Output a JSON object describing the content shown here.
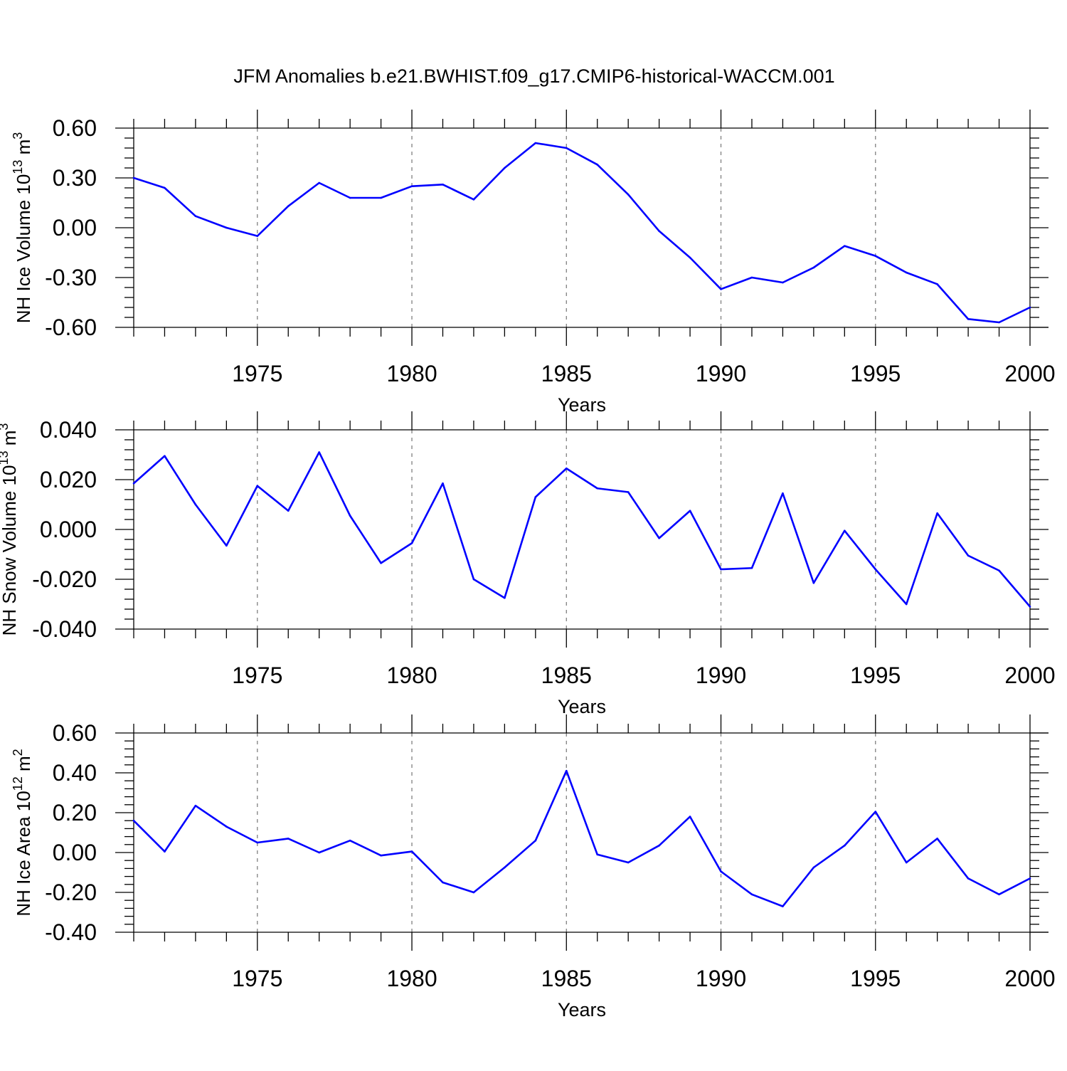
{
  "title": "JFM Anomalies b.e21.BWHIST.f09_g17.CMIP6-historical-WACCM.001",
  "style": {
    "line_color": "#0000ff",
    "axis_color": "#000000",
    "grid_color": "#808080"
  },
  "chart_data": [
    {
      "type": "line",
      "ylabel": {
        "prefix": "NH Ice Volume 10",
        "exponent": "13",
        "unit": " m",
        "unit_exponent": "3"
      },
      "xlabel": "Years",
      "xlim": [
        1971,
        2000
      ],
      "ylim": [
        -0.6,
        0.6
      ],
      "yticks": [
        -0.6,
        -0.3,
        0.0,
        0.3,
        0.6
      ],
      "ytick_labels": [
        "-0.60",
        "-0.30",
        "0.00",
        "0.30",
        "0.60"
      ],
      "xticks": [
        1975,
        1980,
        1985,
        1990,
        1995,
        2000
      ],
      "xtick_labels": [
        "1975",
        "1980",
        "1985",
        "1990",
        "1995",
        "2000"
      ],
      "grid": "vertical dashed at major x ticks",
      "series": [
        {
          "x": [
            1971,
            1972,
            1973,
            1974,
            1975,
            1976,
            1977,
            1978,
            1979,
            1980,
            1981,
            1982,
            1983,
            1984,
            1985,
            1986,
            1987,
            1988,
            1989,
            1990,
            1991,
            1992,
            1993,
            1994,
            1995,
            1996,
            1997,
            1998,
            1999,
            2000
          ],
          "values": [
            0.3,
            0.24,
            0.07,
            0.0,
            -0.05,
            0.13,
            0.27,
            0.18,
            0.18,
            0.25,
            0.26,
            0.17,
            0.36,
            0.51,
            0.48,
            0.38,
            0.2,
            -0.02,
            -0.18,
            -0.37,
            -0.3,
            -0.33,
            -0.24,
            -0.11,
            -0.17,
            -0.27,
            -0.34,
            -0.55,
            -0.57,
            -0.48
          ]
        }
      ]
    },
    {
      "type": "line",
      "ylabel": {
        "prefix": "NH Snow Volume 10",
        "exponent": "13",
        "unit": " m",
        "unit_exponent": "3"
      },
      "xlabel": "Years",
      "xlim": [
        1971,
        2000
      ],
      "ylim": [
        -0.04,
        0.04
      ],
      "yticks": [
        -0.04,
        -0.02,
        0.0,
        0.02,
        0.04
      ],
      "ytick_labels": [
        "-0.040",
        "-0.020",
        "0.000",
        "0.020",
        "0.040"
      ],
      "xticks": [
        1975,
        1980,
        1985,
        1990,
        1995,
        2000
      ],
      "xtick_labels": [
        "1975",
        "1980",
        "1985",
        "1990",
        "1995",
        "2000"
      ],
      "grid": "vertical dashed at major x ticks",
      "series": [
        {
          "x": [
            1971,
            1972,
            1973,
            1974,
            1975,
            1976,
            1977,
            1978,
            1979,
            1980,
            1981,
            1982,
            1983,
            1984,
            1985,
            1986,
            1987,
            1988,
            1989,
            1990,
            1991,
            1992,
            1993,
            1994,
            1995,
            1996,
            1997,
            1998,
            1999,
            2000
          ],
          "values": [
            0.0185,
            0.0295,
            0.01,
            -0.0065,
            0.0175,
            0.0075,
            0.031,
            0.0055,
            -0.0135,
            -0.0055,
            0.0185,
            -0.02,
            -0.0275,
            0.013,
            0.0245,
            0.0165,
            0.015,
            -0.0035,
            0.0075,
            -0.016,
            -0.0155,
            0.0145,
            -0.0215,
            -0.0005,
            -0.016,
            -0.03,
            0.0065,
            -0.0105,
            -0.0165,
            -0.031
          ]
        }
      ]
    },
    {
      "type": "line",
      "ylabel": {
        "prefix": "NH Ice Area 10",
        "exponent": "12",
        "unit": " m",
        "unit_exponent": "2"
      },
      "xlabel": "Years",
      "xlim": [
        1971,
        2000
      ],
      "ylim": [
        -0.4,
        0.6
      ],
      "yticks": [
        -0.4,
        -0.2,
        0.0,
        0.2,
        0.4,
        0.6
      ],
      "ytick_labels": [
        "-0.40",
        "-0.20",
        "0.00",
        "0.20",
        "0.40",
        "0.60"
      ],
      "xticks": [
        1975,
        1980,
        1985,
        1990,
        1995,
        2000
      ],
      "xtick_labels": [
        "1975",
        "1980",
        "1985",
        "1990",
        "1995",
        "2000"
      ],
      "grid": "vertical dashed at major x ticks",
      "series": [
        {
          "x": [
            1971,
            1972,
            1973,
            1974,
            1975,
            1976,
            1977,
            1978,
            1979,
            1980,
            1981,
            1982,
            1983,
            1984,
            1985,
            1986,
            1987,
            1988,
            1989,
            1990,
            1991,
            1992,
            1993,
            1994,
            1995,
            1996,
            1997,
            1998,
            1999,
            2000
          ],
          "values": [
            0.16,
            0.005,
            0.235,
            0.13,
            0.05,
            0.07,
            0.0,
            0.06,
            -0.015,
            0.005,
            -0.15,
            -0.2,
            -0.075,
            0.06,
            0.41,
            -0.01,
            -0.05,
            0.035,
            0.18,
            -0.095,
            -0.21,
            -0.27,
            -0.075,
            0.035,
            0.205,
            -0.05,
            0.07,
            -0.13,
            -0.21,
            -0.13
          ]
        }
      ]
    }
  ]
}
